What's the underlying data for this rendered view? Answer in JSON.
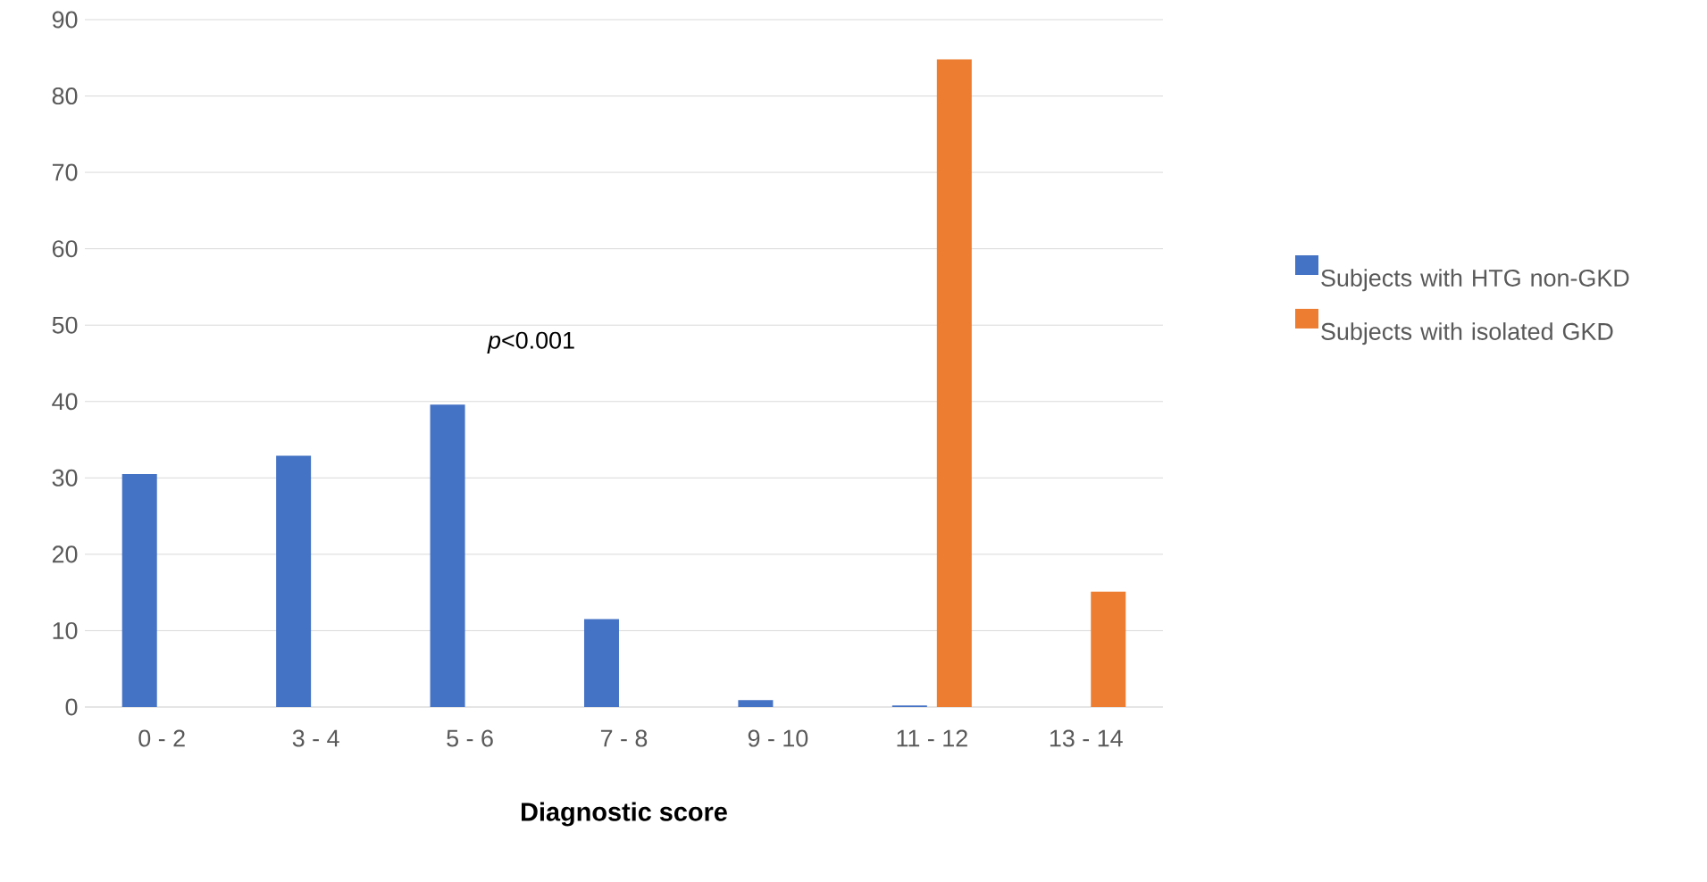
{
  "chart_data": {
    "type": "bar",
    "xlabel": "Diagnostic score",
    "categories": [
      "0 - 2",
      "3 - 4",
      "5 - 6",
      "7 - 8",
      "9 - 10",
      "11 - 12",
      "13 - 14"
    ],
    "series": [
      {
        "name": "Subjects with HTG non-GKD",
        "color": "#4472c4",
        "values": [
          30.5,
          32.9,
          39.6,
          11.5,
          0.9,
          0.2,
          0
        ]
      },
      {
        "name": "Subjects with isolated GKD",
        "color": "#ed7d31",
        "values": [
          0,
          0,
          0,
          0,
          0,
          84.8,
          15.1
        ]
      }
    ],
    "ylim": [
      0,
      90
    ],
    "yticks": [
      0,
      10,
      20,
      30,
      40,
      50,
      60,
      70,
      80,
      90
    ],
    "grid": "y",
    "legend": "right",
    "annotations": [
      "*p*<0.001"
    ]
  }
}
